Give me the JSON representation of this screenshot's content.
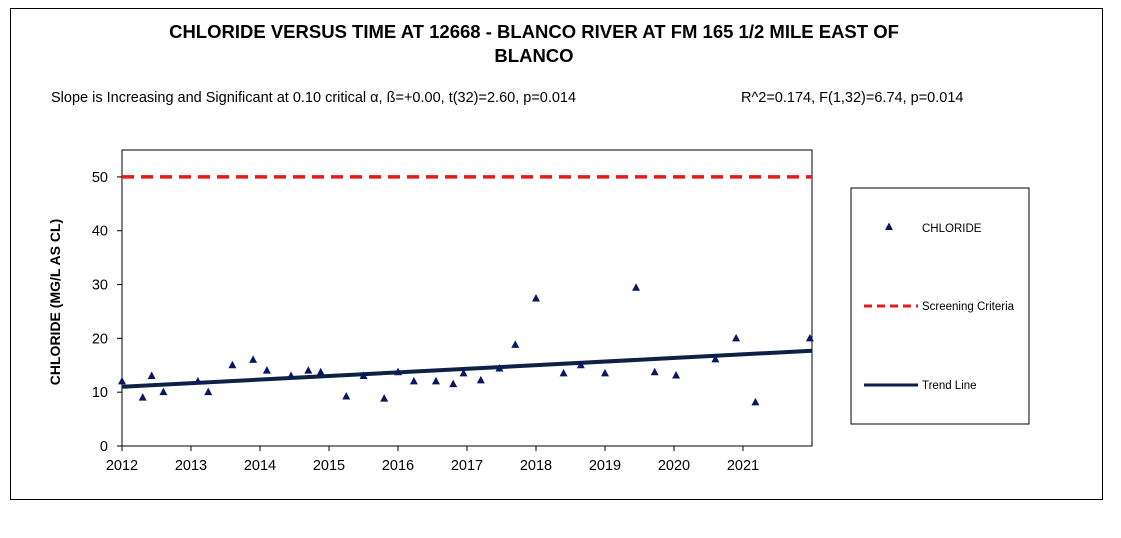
{
  "chart_data": {
    "type": "scatter",
    "title_line1": "CHLORIDE VERSUS TIME AT 12668 - BLANCO RIVER AT FM 165 1/2 MILE EAST OF",
    "title_line2": "BLANCO",
    "stats_left": "Slope is Increasing and Significant at 0.10 critical α, ß=+0.00, t(32)=2.60, p=0.014",
    "stats_right": "R^2=0.174,  F(1,32)=6.74, p=0.014",
    "ylabel": "CHLORIDE (MG/L AS CL)",
    "xlabel": "",
    "xlim": [
      2012,
      2022
    ],
    "ylim": [
      0,
      55
    ],
    "x_ticks": [
      "2012",
      "2013",
      "2014",
      "2015",
      "2016",
      "2017",
      "2018",
      "2019",
      "2020",
      "2021"
    ],
    "y_ticks": [
      "0",
      "10",
      "20",
      "30",
      "40",
      "50"
    ],
    "grid": false,
    "legend_position": "right",
    "series": [
      {
        "name": "CHLORIDE",
        "color": "#0b1660",
        "marker": "triangle",
        "points": [
          {
            "x": 2012.0,
            "y": 12
          },
          {
            "x": 2012.3,
            "y": 9
          },
          {
            "x": 2012.43,
            "y": 13
          },
          {
            "x": 2012.6,
            "y": 10
          },
          {
            "x": 2013.1,
            "y": 12
          },
          {
            "x": 2013.25,
            "y": 10
          },
          {
            "x": 2013.6,
            "y": 15
          },
          {
            "x": 2013.9,
            "y": 16
          },
          {
            "x": 2014.1,
            "y": 14
          },
          {
            "x": 2014.45,
            "y": 13
          },
          {
            "x": 2014.7,
            "y": 14
          },
          {
            "x": 2014.88,
            "y": 13.7
          },
          {
            "x": 2015.25,
            "y": 9.2
          },
          {
            "x": 2015.5,
            "y": 13
          },
          {
            "x": 2015.8,
            "y": 8.8
          },
          {
            "x": 2016.0,
            "y": 13.7
          },
          {
            "x": 2016.23,
            "y": 12
          },
          {
            "x": 2016.55,
            "y": 12
          },
          {
            "x": 2016.8,
            "y": 11.5
          },
          {
            "x": 2016.95,
            "y": 13.5
          },
          {
            "x": 2017.2,
            "y": 12.2
          },
          {
            "x": 2017.47,
            "y": 14.4
          },
          {
            "x": 2017.7,
            "y": 18.8
          },
          {
            "x": 2018.0,
            "y": 27.4
          },
          {
            "x": 2018.4,
            "y": 13.5
          },
          {
            "x": 2018.65,
            "y": 15
          },
          {
            "x": 2019.0,
            "y": 13.5
          },
          {
            "x": 2019.45,
            "y": 29.4
          },
          {
            "x": 2019.72,
            "y": 13.7
          },
          {
            "x": 2020.03,
            "y": 13.1
          },
          {
            "x": 2020.6,
            "y": 16.1
          },
          {
            "x": 2020.9,
            "y": 20
          },
          {
            "x": 2021.18,
            "y": 8.1
          },
          {
            "x": 2021.97,
            "y": 20
          }
        ]
      },
      {
        "name": "Screening Criteria",
        "color": "#e31b1b",
        "style": "dashed",
        "x": [
          2012,
          2022
        ],
        "y": [
          50,
          50
        ]
      },
      {
        "name": "Trend Line",
        "color": "#0d2146",
        "style": "solid",
        "x": [
          2012,
          2022
        ],
        "y": [
          11.0,
          17.7
        ]
      }
    ]
  }
}
